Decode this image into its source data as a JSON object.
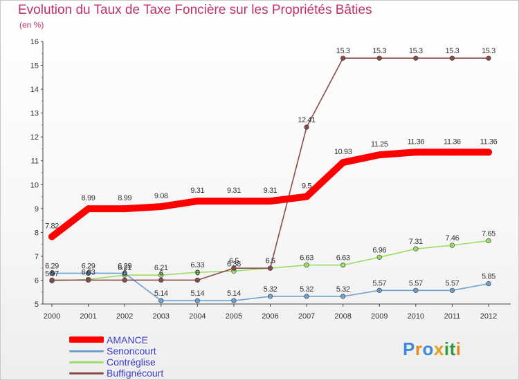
{
  "title": "Evolution du Taux de Taxe Foncière sur les Propriétés Bâties",
  "unit": "(en %)",
  "brand": {
    "text": "Proxiti"
  },
  "chart_data": {
    "type": "line",
    "title": "Evolution du Taux de Taxe Foncière sur les Propriétés Bâties",
    "ylabel": "(en %)",
    "xlabel": "",
    "ylim": [
      5,
      16
    ],
    "x": [
      "2000",
      "2001",
      "2002",
      "2003",
      "2004",
      "2005",
      "2006",
      "2007",
      "2008",
      "2009",
      "2010",
      "2011",
      "2012"
    ],
    "yticks": [
      "5",
      "6",
      "7",
      "8",
      "9",
      "10",
      "11",
      "12",
      "13",
      "14",
      "15",
      "16"
    ],
    "series": [
      {
        "name": "AMANCE",
        "color": "#ff0000",
        "values": [
          7.82,
          8.99,
          8.99,
          9.08,
          9.31,
          9.31,
          9.31,
          9.5,
          10.93,
          11.25,
          11.36,
          11.36,
          11.36
        ],
        "labels": [
          "7.82",
          "8.99",
          "8.99",
          "9.08",
          "9.31",
          "9.31",
          "9.31",
          "9.5",
          "10.93",
          "11.25",
          "11.36",
          "11.36",
          "11.36"
        ]
      },
      {
        "name": "Senoncourt",
        "color": "#6fa0d0",
        "values": [
          6.29,
          6.29,
          6.29,
          5.14,
          5.14,
          5.14,
          5.32,
          5.32,
          5.32,
          5.57,
          5.57,
          5.57,
          5.85
        ],
        "labels": [
          "6.29",
          "6.29",
          "6.29",
          "5.14",
          "5.14",
          "5.14",
          "5.32",
          "5.32",
          "5.32",
          "5.57",
          "5.57",
          "5.57",
          "5.85"
        ]
      },
      {
        "name": "Contréglise",
        "color": "#99dd66",
        "values": [
          5.97,
          6.03,
          6.21,
          6.21,
          6.33,
          6.38,
          6.5,
          6.63,
          6.63,
          6.96,
          7.31,
          7.46,
          7.65
        ],
        "labels": [
          "5.97",
          "6.03",
          "6.21",
          "6.21",
          "6.33",
          "6.38",
          "6.5",
          "6.63",
          "6.63",
          "6.96",
          "7.31",
          "7.46",
          "7.65"
        ]
      },
      {
        "name": "Buffignécourt",
        "color": "#8b4a4a",
        "values": [
          6,
          6,
          6,
          6,
          6,
          6.5,
          6.5,
          12.41,
          15.3,
          15.3,
          15.3,
          15.3,
          15.3
        ],
        "labels": [
          "6",
          "6",
          "6",
          "6",
          "6",
          "6.5",
          "6.5",
          "12.41",
          "15.3",
          "15.3",
          "15.3",
          "15.3",
          "15.3"
        ]
      }
    ]
  }
}
